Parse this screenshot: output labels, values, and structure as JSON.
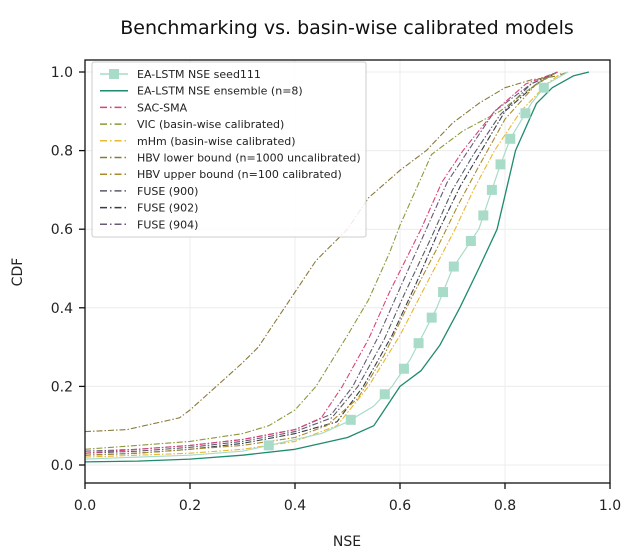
{
  "chart_data": {
    "type": "line",
    "title": "Benchmarking vs. basin-wise calibrated models",
    "xlabel": "NSE",
    "ylabel": "CDF",
    "xlim": [
      0.0,
      1.0
    ],
    "ylim": [
      -0.05,
      1.03
    ],
    "xticks": [
      "0.0",
      "0.2",
      "0.4",
      "0.6",
      "0.8",
      "1.0"
    ],
    "yticks": [
      "0.0",
      "0.2",
      "0.4",
      "0.6",
      "0.8",
      "1.0"
    ],
    "xtick_values": [
      0.0,
      0.2,
      0.4,
      0.6,
      0.8,
      1.0
    ],
    "ytick_values": [
      0.0,
      0.2,
      0.4,
      0.6,
      0.8,
      1.0
    ],
    "grid": true,
    "legend_position": "top-left",
    "series": [
      {
        "name": "EA-LSTM NSE seed111",
        "color": "#a8dcc8",
        "style": "solid-square-markers",
        "x": [
          0.0,
          0.1,
          0.2,
          0.3,
          0.35,
          0.45,
          0.5,
          0.55,
          0.585,
          0.62,
          0.67,
          0.7,
          0.75,
          0.79,
          0.81,
          0.85,
          0.88,
          0.92
        ],
        "y": [
          0.015,
          0.02,
          0.025,
          0.035,
          0.05,
          0.08,
          0.11,
          0.15,
          0.2,
          0.27,
          0.4,
          0.5,
          0.6,
          0.76,
          0.83,
          0.92,
          0.97,
          1.0
        ]
      },
      {
        "name": "EA-LSTM NSE ensemble (n=8)",
        "color": "#1e8a6e",
        "style": "solid",
        "x": [
          0.0,
          0.1,
          0.2,
          0.3,
          0.4,
          0.45,
          0.5,
          0.55,
          0.6,
          0.64,
          0.676,
          0.714,
          0.75,
          0.785,
          0.82,
          0.86,
          0.89,
          0.93,
          0.96
        ],
        "y": [
          0.008,
          0.01,
          0.015,
          0.025,
          0.04,
          0.055,
          0.07,
          0.1,
          0.2,
          0.24,
          0.305,
          0.4,
          0.5,
          0.6,
          0.8,
          0.92,
          0.96,
          0.99,
          1.0
        ]
      },
      {
        "name": "SAC-SMA",
        "color": "#d9447a",
        "style": "dashdot",
        "x": [
          0.0,
          0.1,
          0.2,
          0.3,
          0.4,
          0.45,
          0.49,
          0.54,
          0.58,
          0.64,
          0.68,
          0.72,
          0.78,
          0.84,
          0.9
        ],
        "y": [
          0.03,
          0.04,
          0.05,
          0.065,
          0.09,
          0.12,
          0.2,
          0.32,
          0.44,
          0.6,
          0.72,
          0.8,
          0.9,
          0.97,
          1.0
        ]
      },
      {
        "name": "VIC (basin-wise calibrated)",
        "color": "#8a9a3a",
        "style": "dashdot",
        "x": [
          0.0,
          0.1,
          0.2,
          0.3,
          0.35,
          0.4,
          0.44,
          0.5,
          0.54,
          0.58,
          0.6,
          0.63,
          0.66,
          0.72,
          0.79,
          0.85,
          0.9
        ],
        "y": [
          0.04,
          0.05,
          0.06,
          0.08,
          0.1,
          0.14,
          0.2,
          0.33,
          0.42,
          0.54,
          0.61,
          0.7,
          0.79,
          0.85,
          0.9,
          0.96,
          1.0
        ]
      },
      {
        "name": "mHm (basin-wise calibrated)",
        "color": "#e8b830",
        "style": "dashdot",
        "x": [
          0.0,
          0.1,
          0.2,
          0.3,
          0.4,
          0.48,
          0.54,
          0.6,
          0.65,
          0.705,
          0.74,
          0.78,
          0.83,
          0.88,
          0.91
        ],
        "y": [
          0.02,
          0.025,
          0.03,
          0.04,
          0.06,
          0.1,
          0.2,
          0.33,
          0.46,
          0.6,
          0.7,
          0.8,
          0.9,
          0.97,
          1.0
        ]
      },
      {
        "name": "HBV lower bound (n=1000 uncalibrated)",
        "color": "#8a7a3a",
        "style": "dashdot",
        "x": [
          0.0,
          0.08,
          0.18,
          0.2,
          0.25,
          0.3,
          0.33,
          0.36,
          0.39,
          0.44,
          0.5,
          0.54,
          0.6,
          0.65,
          0.7,
          0.75,
          0.8,
          0.85,
          0.9,
          0.92
        ],
        "y": [
          0.085,
          0.09,
          0.12,
          0.14,
          0.2,
          0.26,
          0.3,
          0.36,
          0.42,
          0.52,
          0.6,
          0.68,
          0.75,
          0.8,
          0.87,
          0.92,
          0.96,
          0.98,
          0.99,
          1.0
        ]
      },
      {
        "name": "HBV upper bound (n=100 calibrated)",
        "color": "#a88a30",
        "style": "dashdot",
        "x": [
          0.0,
          0.1,
          0.2,
          0.3,
          0.4,
          0.46,
          0.52,
          0.57,
          0.62,
          0.67,
          0.71,
          0.75,
          0.8,
          0.86,
          0.9
        ],
        "y": [
          0.025,
          0.03,
          0.04,
          0.05,
          0.07,
          0.1,
          0.17,
          0.28,
          0.42,
          0.55,
          0.66,
          0.76,
          0.88,
          0.97,
          1.0
        ]
      },
      {
        "name": "FUSE (900)",
        "color": "#5a5a6a",
        "style": "dashdot",
        "x": [
          0.0,
          0.1,
          0.2,
          0.3,
          0.4,
          0.47,
          0.52,
          0.57,
          0.61,
          0.66,
          0.7,
          0.74,
          0.79,
          0.85,
          0.9
        ],
        "y": [
          0.03,
          0.035,
          0.045,
          0.06,
          0.085,
          0.12,
          0.2,
          0.32,
          0.44,
          0.58,
          0.7,
          0.79,
          0.89,
          0.97,
          1.0
        ]
      },
      {
        "name": "FUSE (902)",
        "color": "#3a3a4a",
        "style": "dashdot",
        "x": [
          0.0,
          0.1,
          0.2,
          0.3,
          0.4,
          0.48,
          0.53,
          0.585,
          0.63,
          0.675,
          0.715,
          0.755,
          0.8,
          0.86,
          0.9
        ],
        "y": [
          0.025,
          0.03,
          0.04,
          0.055,
          0.08,
          0.11,
          0.2,
          0.33,
          0.46,
          0.6,
          0.71,
          0.8,
          0.9,
          0.97,
          1.0
        ]
      },
      {
        "name": "FUSE (904)",
        "color": "#6a5a7a",
        "style": "dashdot",
        "x": [
          0.0,
          0.1,
          0.2,
          0.3,
          0.4,
          0.47,
          0.51,
          0.56,
          0.6,
          0.65,
          0.69,
          0.73,
          0.78,
          0.85,
          0.9
        ],
        "y": [
          0.035,
          0.04,
          0.05,
          0.065,
          0.09,
          0.13,
          0.2,
          0.33,
          0.45,
          0.6,
          0.72,
          0.8,
          0.9,
          0.97,
          1.0
        ]
      }
    ]
  }
}
